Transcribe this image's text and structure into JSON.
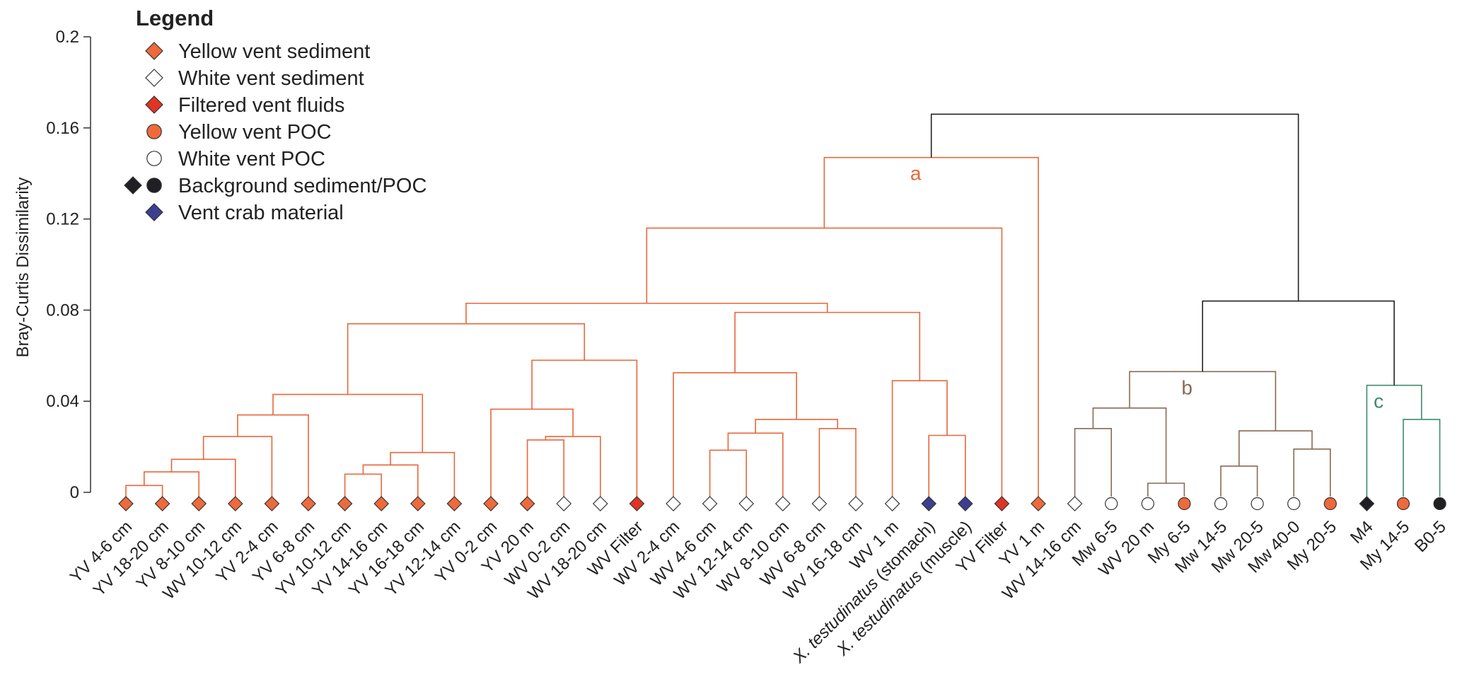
{
  "chart_data": {
    "type": "dendrogram",
    "ylabel": "Bray-Curtis Dissimilarity",
    "ylim": [
      0,
      0.2
    ],
    "yticks": [
      "0",
      "0.04",
      "0.08",
      "0.12",
      "0.16",
      "0.2"
    ],
    "ytick_values": [
      0,
      0.04,
      0.08,
      0.12,
      0.16,
      0.2
    ],
    "colors": {
      "yellow_vent": "#ee6a3a",
      "filtered": "#e03424",
      "crab": "#3c3f8f",
      "background": "#1f1f24",
      "cluster_a": "#e8673a",
      "cluster_b": "#8a6a55",
      "cluster_c": "#3f8a6b",
      "root": "#222222"
    },
    "legend": {
      "title": "Legend",
      "entries": [
        {
          "label": "Yellow vent sediment",
          "symbols": [
            "diamond"
          ],
          "fill": "#ee6a3a"
        },
        {
          "label": "White vent sediment",
          "symbols": [
            "diamond"
          ],
          "fill": "#ffffff"
        },
        {
          "label": "Filtered vent fluids",
          "symbols": [
            "diamond"
          ],
          "fill": "#e03424"
        },
        {
          "label": "Yellow vent POC",
          "symbols": [
            "circle"
          ],
          "fill": "#ee6a3a"
        },
        {
          "label": "White vent POC",
          "symbols": [
            "circle"
          ],
          "fill": "#ffffff"
        },
        {
          "label": "Background sediment/POC",
          "symbols": [
            "diamond",
            "circle"
          ],
          "fill": "#1f1f24"
        },
        {
          "label": "Vent crab material",
          "symbols": [
            "diamond"
          ],
          "fill": "#3c3f8f"
        }
      ]
    },
    "leaves": [
      {
        "label": "YV 4-6 cm",
        "shape": "diamond",
        "fill": "#ee6a3a"
      },
      {
        "label": "YV 18-20 cm",
        "shape": "diamond",
        "fill": "#ee6a3a"
      },
      {
        "label": "YV 8-10 cm",
        "shape": "diamond",
        "fill": "#ee6a3a"
      },
      {
        "label": "WV 10-12 cm",
        "shape": "diamond",
        "fill": "#ee6a3a"
      },
      {
        "label": "YV 2-4 cm",
        "shape": "diamond",
        "fill": "#ee6a3a"
      },
      {
        "label": "YV 6-8 cm",
        "shape": "diamond",
        "fill": "#ee6a3a"
      },
      {
        "label": "YV 10-12 cm",
        "shape": "diamond",
        "fill": "#ee6a3a"
      },
      {
        "label": "YV 14-16 cm",
        "shape": "diamond",
        "fill": "#ee6a3a"
      },
      {
        "label": "YV 16-18 cm",
        "shape": "diamond",
        "fill": "#ee6a3a"
      },
      {
        "label": "YV 12-14 cm",
        "shape": "diamond",
        "fill": "#ee6a3a"
      },
      {
        "label": "YV 0-2 cm",
        "shape": "diamond",
        "fill": "#ee6a3a"
      },
      {
        "label": "YV 20 m",
        "shape": "diamond",
        "fill": "#ee6a3a"
      },
      {
        "label": "WV 0-2 cm",
        "shape": "diamond",
        "fill": "#ffffff"
      },
      {
        "label": "WV 18-20 cm",
        "shape": "diamond",
        "fill": "#ffffff"
      },
      {
        "label": "WV Filter",
        "shape": "diamond",
        "fill": "#e03424"
      },
      {
        "label": "WV 2-4 cm",
        "shape": "diamond",
        "fill": "#ffffff"
      },
      {
        "label": "WV 4-6 cm",
        "shape": "diamond",
        "fill": "#ffffff"
      },
      {
        "label": "WV 12-14 cm",
        "shape": "diamond",
        "fill": "#ffffff"
      },
      {
        "label": "WV 8-10 cm",
        "shape": "diamond",
        "fill": "#ffffff"
      },
      {
        "label": "WV 6-8 cm",
        "shape": "diamond",
        "fill": "#ffffff"
      },
      {
        "label": "WV 16-18 cm",
        "shape": "diamond",
        "fill": "#ffffff"
      },
      {
        "label": "WV 1 m",
        "shape": "diamond",
        "fill": "#ffffff"
      },
      {
        "label": "X. testudinatus (stomach)",
        "italic": "X. testudinatus",
        "rest": " (stomach)",
        "shape": "diamond",
        "fill": "#3c3f8f"
      },
      {
        "label": "X. testudinatus (muscle)",
        "italic": "X. testudinatus",
        "rest": " (muscle)",
        "shape": "diamond",
        "fill": "#3c3f8f"
      },
      {
        "label": "YV Filter",
        "shape": "diamond",
        "fill": "#e03424"
      },
      {
        "label": "YV 1 m",
        "shape": "diamond",
        "fill": "#ee6a3a"
      },
      {
        "label": "WV 14-16 cm",
        "shape": "diamond",
        "fill": "#ffffff"
      },
      {
        "label": "Mw 6-5",
        "shape": "circle",
        "fill": "#ffffff"
      },
      {
        "label": "WV 20 m",
        "shape": "circle",
        "fill": "#ffffff"
      },
      {
        "label": "My 6-5",
        "shape": "circle",
        "fill": "#ee6a3a"
      },
      {
        "label": "Mw 14-5",
        "shape": "circle",
        "fill": "#ffffff"
      },
      {
        "label": "Mw 20-5",
        "shape": "circle",
        "fill": "#ffffff"
      },
      {
        "label": "Mw 40-0",
        "shape": "circle",
        "fill": "#ffffff"
      },
      {
        "label": "My 20-5",
        "shape": "circle",
        "fill": "#ee6a3a"
      },
      {
        "label": "M4",
        "shape": "diamond",
        "fill": "#1f1f24"
      },
      {
        "label": "My 14-5",
        "shape": "circle",
        "fill": "#ee6a3a"
      },
      {
        "label": "B0-5",
        "shape": "circle",
        "fill": "#1f1f24"
      }
    ],
    "merges": [
      {
        "a": "L0",
        "b": "L1",
        "h": 0.003,
        "color": "#e8673a"
      },
      {
        "a": "N0",
        "b": "L2",
        "h": 0.009,
        "color": "#e8673a"
      },
      {
        "a": "N1",
        "b": "L3",
        "h": 0.0145,
        "color": "#e8673a"
      },
      {
        "a": "N2",
        "b": "L4",
        "h": 0.0245,
        "color": "#e8673a"
      },
      {
        "a": "N3",
        "b": "L5",
        "h": 0.034,
        "color": "#e8673a"
      },
      {
        "a": "L6",
        "b": "L7",
        "h": 0.008,
        "color": "#e8673a"
      },
      {
        "a": "N5",
        "b": "L8",
        "h": 0.012,
        "color": "#e8673a"
      },
      {
        "a": "N6",
        "b": "L9",
        "h": 0.0175,
        "color": "#e8673a"
      },
      {
        "a": "N4",
        "b": "N7",
        "h": 0.043,
        "color": "#e8673a"
      },
      {
        "a": "L11",
        "b": "L12",
        "h": 0.023,
        "color": "#e8673a"
      },
      {
        "a": "N9",
        "b": "L13",
        "h": 0.0245,
        "color": "#e8673a"
      },
      {
        "a": "L10",
        "b": "N10",
        "h": 0.0365,
        "color": "#e8673a"
      },
      {
        "a": "N11",
        "b": "L14",
        "h": 0.058,
        "color": "#e8673a"
      },
      {
        "a": "N8",
        "b": "N12",
        "h": 0.074,
        "color": "#e8673a"
      },
      {
        "a": "L16",
        "b": "L17",
        "h": 0.0185,
        "color": "#e8673a"
      },
      {
        "a": "N14",
        "b": "L18",
        "h": 0.026,
        "color": "#e8673a"
      },
      {
        "a": "L19",
        "b": "L20",
        "h": 0.028,
        "color": "#e8673a"
      },
      {
        "a": "N15",
        "b": "N16",
        "h": 0.032,
        "color": "#e8673a"
      },
      {
        "a": "L15",
        "b": "N17",
        "h": 0.0525,
        "color": "#e8673a"
      },
      {
        "a": "L22",
        "b": "L23",
        "h": 0.025,
        "color": "#e8673a"
      },
      {
        "a": "L21",
        "b": "N19",
        "h": 0.049,
        "color": "#e8673a"
      },
      {
        "a": "N18",
        "b": "N20",
        "h": 0.079,
        "color": "#e8673a"
      },
      {
        "a": "N13",
        "b": "N21",
        "h": 0.083,
        "color": "#e8673a"
      },
      {
        "a": "N22",
        "b": "L24",
        "h": 0.116,
        "color": "#e8673a"
      },
      {
        "a": "N23",
        "b": "L25",
        "h": 0.147,
        "color": "#e8673a"
      },
      {
        "a": "L26",
        "b": "L27",
        "h": 0.028,
        "color": "#8a6a55"
      },
      {
        "a": "L28",
        "b": "L29",
        "h": 0.004,
        "color": "#8a6a55"
      },
      {
        "a": "N25",
        "b": "N26",
        "h": 0.037,
        "color": "#8a6a55"
      },
      {
        "a": "L30",
        "b": "L31",
        "h": 0.0115,
        "color": "#8a6a55"
      },
      {
        "a": "L32",
        "b": "L33",
        "h": 0.019,
        "color": "#8a6a55"
      },
      {
        "a": "N28",
        "b": "N29",
        "h": 0.027,
        "color": "#8a6a55"
      },
      {
        "a": "N27",
        "b": "N30",
        "h": 0.053,
        "color": "#8a6a55"
      },
      {
        "a": "L35",
        "b": "L36",
        "h": 0.032,
        "color": "#3f8a6b"
      },
      {
        "a": "L34",
        "b": "N32",
        "h": 0.047,
        "color": "#3f8a6b"
      },
      {
        "a": "N31",
        "b": "N33",
        "h": 0.084,
        "color": "#222222"
      },
      {
        "a": "N24",
        "b": "N34",
        "h": 0.166,
        "color": "#222222"
      }
    ],
    "cluster_labels": [
      {
        "text": "a",
        "node": "N24",
        "color": "#e8673a"
      },
      {
        "text": "b",
        "node": "N31",
        "color": "#8a6a55"
      },
      {
        "text": "c",
        "node": "N33",
        "color": "#3f8a6b"
      }
    ]
  }
}
